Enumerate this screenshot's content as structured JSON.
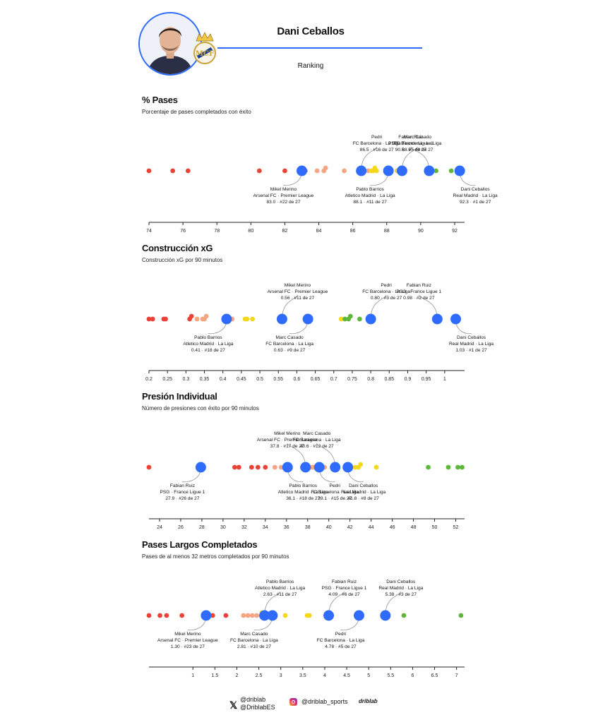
{
  "header": {
    "player_name": "Dani Ceballos",
    "subtitle": "Ranking",
    "accent": "#2f6bff"
  },
  "colors": {
    "player": "#2f6bff",
    "tier_low": "#ea4335",
    "tier_midlow": "#f4a582",
    "tier_midhigh": "#f5d71e",
    "tier_high": "#5db83a",
    "axis": "#222222",
    "connector": "#888888"
  },
  "chart_data": [
    {
      "type": "scatter",
      "title": "% Pases",
      "subtitle": "Porcentaje de pases completados con éxito",
      "xlim": [
        74,
        92.5
      ],
      "ticks": [
        "74",
        "76",
        "78",
        "80",
        "82",
        "84",
        "86",
        "88",
        "90",
        "92"
      ],
      "others": [
        {
          "x": 74.0,
          "t": 0
        },
        {
          "x": 75.4,
          "t": 0
        },
        {
          "x": 76.3,
          "t": 0
        },
        {
          "x": 80.5,
          "t": 0
        },
        {
          "x": 82.0,
          "t": 0
        },
        {
          "x": 83.2,
          "t": 0
        },
        {
          "x": 83.9,
          "t": 1
        },
        {
          "x": 84.3,
          "t": 1
        },
        {
          "x": 84.4,
          "t": 1
        },
        {
          "x": 85.5,
          "t": 1
        },
        {
          "x": 86.7,
          "t": 1
        },
        {
          "x": 86.9,
          "t": 1
        },
        {
          "x": 87.1,
          "t": 2
        },
        {
          "x": 87.2,
          "t": 2
        },
        {
          "x": 87.3,
          "t": 2
        },
        {
          "x": 87.4,
          "t": 2
        },
        {
          "x": 88.6,
          "t": 2
        },
        {
          "x": 90.6,
          "t": 3
        },
        {
          "x": 90.9,
          "t": 3
        },
        {
          "x": 91.8,
          "t": 3
        }
      ],
      "highlights": [
        {
          "name": "Mikel Merino",
          "team": "Arsenal FC · Premier League",
          "rank": "83.0 · #22 de 27",
          "x": 83.0,
          "pos": "below"
        },
        {
          "name": "Pedri",
          "team": "FC Barcelona · La Liga",
          "rank": "86.5 · #16 de 27",
          "x": 86.5,
          "pos": "above"
        },
        {
          "name": "Pablo Barrios",
          "team": "Atletico Madrid · La Liga",
          "rank": "88.1 · #11 de 27",
          "x": 88.1,
          "pos": "below"
        },
        {
          "name": "Marc Casado",
          "team": "FC Barcelona · La Liga",
          "rank": "88.9 · #8 de 27",
          "x": 88.9,
          "pos": "above"
        },
        {
          "name": "Fabian Ruiz",
          "team": "PSG · France Ligue 1",
          "rank": "90.5 · #5 de 27",
          "x": 90.5,
          "pos": "above"
        },
        {
          "name": "Dani Ceballos",
          "team": "Real Madrid · La Liga",
          "rank": "92.3 · #1 de 27",
          "x": 92.3,
          "pos": "below"
        }
      ]
    },
    {
      "type": "scatter",
      "title": "Construcción xG",
      "subtitle": "Construcción xG por 90 minutos",
      "xlim": [
        0.2,
        1.05
      ],
      "ticks": [
        "0.2",
        "0.25",
        "0.3",
        "0.35",
        "0.4",
        "0.45",
        "0.5",
        "0.55",
        "0.6",
        "0.65",
        "0.7",
        "0.75",
        "0.8",
        "0.85",
        "0.9",
        "0.95",
        "1"
      ],
      "others": [
        {
          "x": 0.2,
          "t": 0
        },
        {
          "x": 0.21,
          "t": 0
        },
        {
          "x": 0.24,
          "t": 0
        },
        {
          "x": 0.245,
          "t": 0
        },
        {
          "x": 0.31,
          "t": 0
        },
        {
          "x": 0.315,
          "t": 0
        },
        {
          "x": 0.33,
          "t": 1
        },
        {
          "x": 0.345,
          "t": 1
        },
        {
          "x": 0.35,
          "t": 1
        },
        {
          "x": 0.355,
          "t": 1
        },
        {
          "x": 0.42,
          "t": 1
        },
        {
          "x": 0.425,
          "t": 1
        },
        {
          "x": 0.46,
          "t": 2
        },
        {
          "x": 0.465,
          "t": 2
        },
        {
          "x": 0.48,
          "t": 2
        },
        {
          "x": 0.72,
          "t": 2
        },
        {
          "x": 0.73,
          "t": 3
        },
        {
          "x": 0.74,
          "t": 3
        },
        {
          "x": 0.745,
          "t": 3
        },
        {
          "x": 0.77,
          "t": 3
        }
      ],
      "highlights": [
        {
          "name": "Pablo Barrios",
          "team": "Atletico Madrid · La Liga",
          "rank": "0.41 · #18 de 27",
          "x": 0.41,
          "pos": "below"
        },
        {
          "name": "Mikel Merino",
          "team": "Arsenal FC · Premier League",
          "rank": "0.56 · #11 de 27",
          "x": 0.56,
          "pos": "above"
        },
        {
          "name": "Marc Casado",
          "team": "FC Barcelona · La Liga",
          "rank": "0.63 · #9 de 27",
          "x": 0.63,
          "pos": "below"
        },
        {
          "name": "Pedri",
          "team": "FC Barcelona · La Liga",
          "rank": "0.80 · #3 de 27",
          "x": 0.8,
          "pos": "above"
        },
        {
          "name": "Fabian Ruiz",
          "team": "PSG · France Ligue 1",
          "rank": "0.98 · #2 de 27",
          "x": 0.98,
          "pos": "above"
        },
        {
          "name": "Dani Ceballos",
          "team": "Real Madrid · La Liga",
          "rank": "1.03 · #1 de 27",
          "x": 1.03,
          "pos": "below"
        }
      ]
    },
    {
      "type": "scatter",
      "title": "Presión Individual",
      "subtitle": "Número de presiones con éxito por 90 minutos",
      "xlim": [
        23.0,
        52.7
      ],
      "ticks": [
        "24",
        "26",
        "28",
        "30",
        "32",
        "34",
        "36",
        "38",
        "40",
        "42",
        "44",
        "46",
        "48",
        "50",
        "52"
      ],
      "others": [
        {
          "x": 23.0,
          "t": 0
        },
        {
          "x": 31.1,
          "t": 0
        },
        {
          "x": 31.5,
          "t": 0
        },
        {
          "x": 32.7,
          "t": 0
        },
        {
          "x": 33.3,
          "t": 0
        },
        {
          "x": 34.0,
          "t": 0
        },
        {
          "x": 34.9,
          "t": 1
        },
        {
          "x": 35.5,
          "t": 1
        },
        {
          "x": 37.5,
          "t": 1
        },
        {
          "x": 38.4,
          "t": 1
        },
        {
          "x": 38.6,
          "t": 1
        },
        {
          "x": 39.6,
          "t": 1
        },
        {
          "x": 42.5,
          "t": 2
        },
        {
          "x": 42.8,
          "t": 2
        },
        {
          "x": 43.0,
          "t": 2
        },
        {
          "x": 44.5,
          "t": 2
        },
        {
          "x": 49.4,
          "t": 3
        },
        {
          "x": 51.3,
          "t": 3
        },
        {
          "x": 52.2,
          "t": 3
        },
        {
          "x": 52.6,
          "t": 3
        }
      ],
      "highlights": [
        {
          "name": "Fabian Ruiz",
          "team": "PSG · France Ligue 1",
          "rank": "27.9 · #26 de 27",
          "x": 27.9,
          "pos": "below"
        },
        {
          "name": "Pablo Barrios",
          "team": "Atletico Madrid · La Liga",
          "rank": "36.1 · #18 de 27",
          "x": 36.1,
          "pos": "below"
        },
        {
          "name": "Mikel Merino",
          "team": "Arsenal FC · Premier League",
          "rank": "37.8 · #17 de 27",
          "x": 37.8,
          "pos": "above"
        },
        {
          "name": "Pedri",
          "team": "FC Barcelona · La Liga",
          "rank": "39.1 · #15 de 27",
          "x": 39.1,
          "pos": "below"
        },
        {
          "name": "Marc Casado",
          "team": "FC Barcelona · La Liga",
          "rank": "40.6 · #12 de 27",
          "x": 40.6,
          "pos": "above"
        },
        {
          "name": "Dani Ceballos",
          "team": "Real Madrid · La Liga",
          "rank": "41.8 · #8 de 27",
          "x": 41.8,
          "pos": "below"
        }
      ]
    },
    {
      "type": "scatter",
      "title": "Pases Largos Completados",
      "subtitle": "Pases de al menos 32 metros completados por 90 minutos",
      "xlim": [
        0.0,
        7.15
      ],
      "ticks": [
        "1",
        "1.5",
        "2",
        "2.5",
        "3",
        "3.5",
        "4",
        "4.5",
        "5",
        "5.5",
        "6",
        "6.5",
        "7"
      ],
      "others": [
        {
          "x": 0.0,
          "t": 0
        },
        {
          "x": 0.25,
          "t": 0
        },
        {
          "x": 0.4,
          "t": 0
        },
        {
          "x": 0.75,
          "t": 0
        },
        {
          "x": 1.3,
          "t": 0
        },
        {
          "x": 1.45,
          "t": 0
        },
        {
          "x": 1.75,
          "t": 0
        },
        {
          "x": 2.15,
          "t": 1
        },
        {
          "x": 2.25,
          "t": 1
        },
        {
          "x": 2.35,
          "t": 1
        },
        {
          "x": 2.45,
          "t": 1
        },
        {
          "x": 2.55,
          "t": 1
        },
        {
          "x": 2.57,
          "t": 2
        },
        {
          "x": 3.1,
          "t": 2
        },
        {
          "x": 3.6,
          "t": 2
        },
        {
          "x": 3.65,
          "t": 2
        },
        {
          "x": 5.8,
          "t": 3
        },
        {
          "x": 7.1,
          "t": 3
        }
      ],
      "highlights": [
        {
          "name": "Mikel Merino",
          "team": "Arsenal FC · Premier League",
          "rank": "1.30 · #23 de 27",
          "x": 1.3,
          "pos": "below"
        },
        {
          "name": "Pablo Barrios",
          "team": "Atletico Madrid · La Liga",
          "rank": "2.63 · #11 de 27",
          "x": 2.63,
          "pos": "above"
        },
        {
          "name": "Marc Casado",
          "team": "FC Barcelona · La Liga",
          "rank": "2.81 · #10 de 27",
          "x": 2.81,
          "pos": "below"
        },
        {
          "name": "Fabian Ruiz",
          "team": "PSG · France Ligue 1",
          "rank": "4.09 · #6 de 27",
          "x": 4.09,
          "pos": "above"
        },
        {
          "name": "Pedri",
          "team": "FC Barcelona · La Liga",
          "rank": "4.78 · #5 de 27",
          "x": 4.78,
          "pos": "below"
        },
        {
          "name": "Dani Ceballos",
          "team": "Real Madrid · La Liga",
          "rank": "5.38 · #3 de 27",
          "x": 5.38,
          "pos": "above"
        }
      ]
    }
  ],
  "footer": {
    "x_handle_1": "@driblаb",
    "x_handle_2": "@DriblabES",
    "instagram_handle": "@driblab_sports",
    "brand": "driblab",
    "x_icon": "x-logo-icon",
    "instagram_icon": "instagram-icon"
  }
}
